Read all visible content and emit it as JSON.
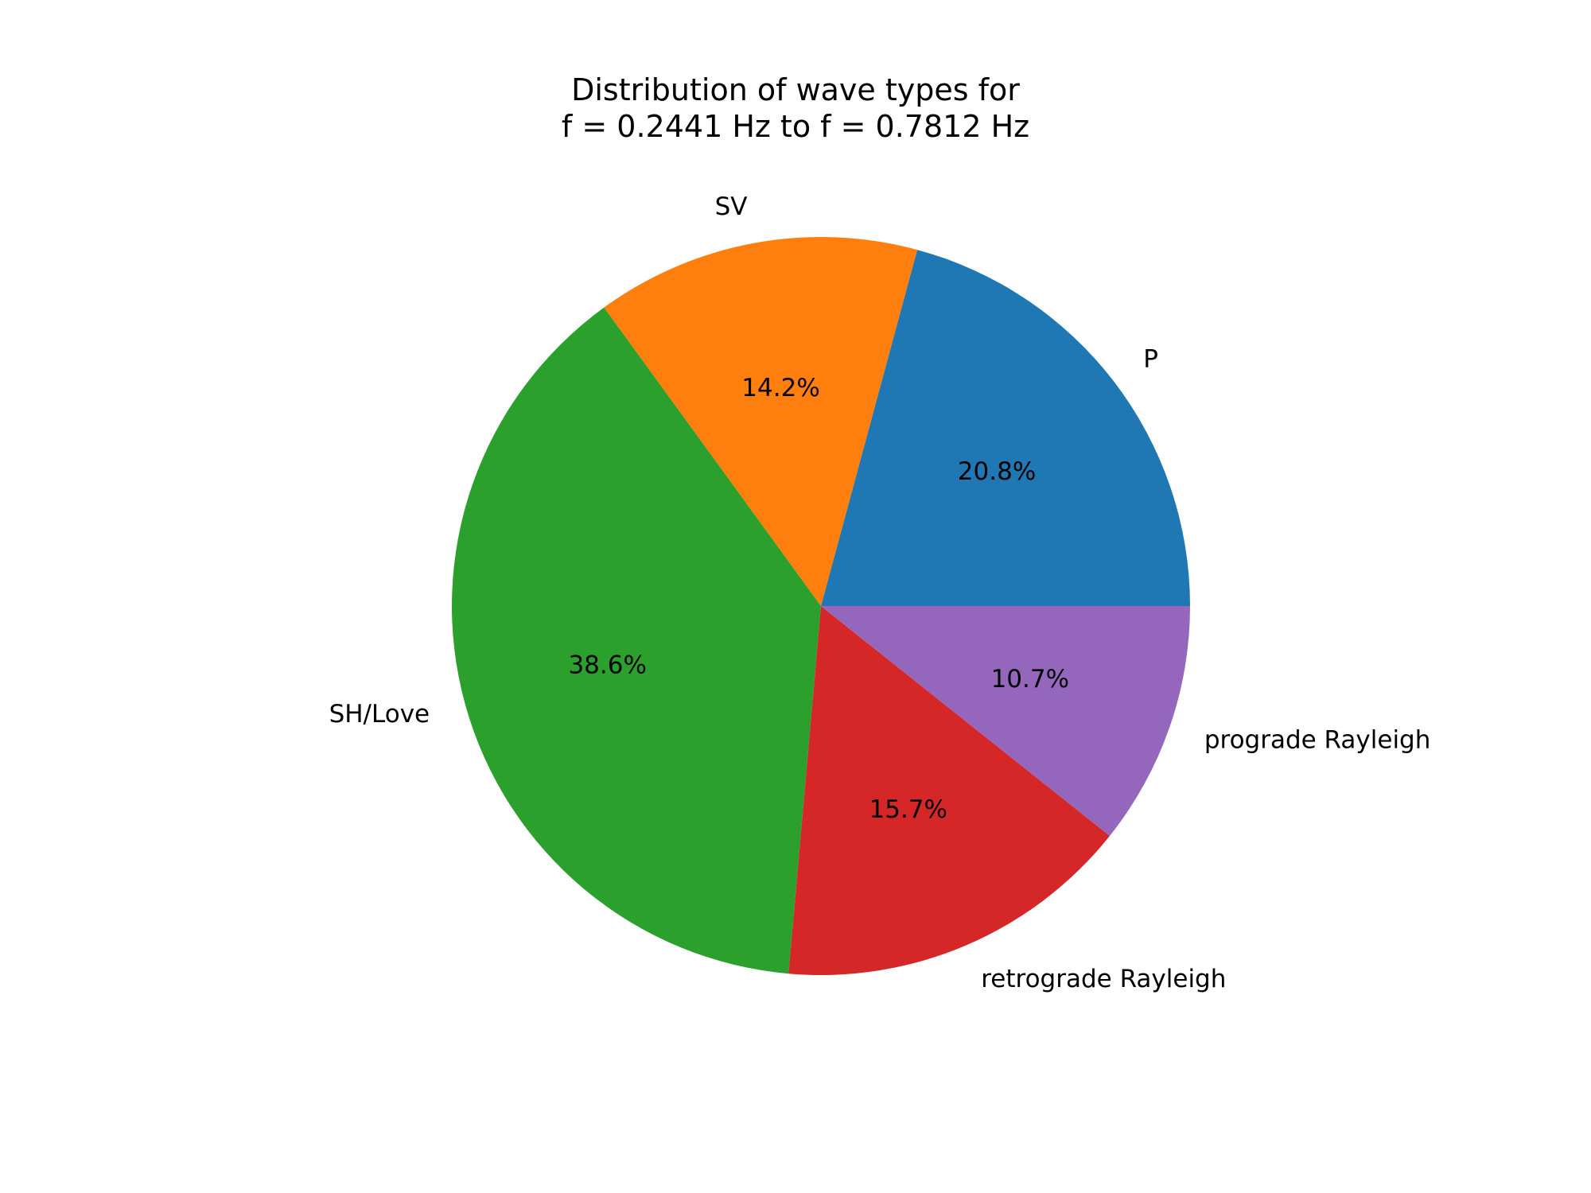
{
  "chart_data": {
    "type": "pie",
    "title_lines": [
      "Distribution of wave types for",
      "f = 0.2441 Hz to f = 0.7812 Hz"
    ],
    "start_angle_deg": 0,
    "direction": "counterclockwise",
    "slices": [
      {
        "label": "P",
        "value": 20.8,
        "pct_label": "20.8%",
        "color": "#1f77b4"
      },
      {
        "label": "SV",
        "value": 14.2,
        "pct_label": "14.2%",
        "color": "#ff7f0e"
      },
      {
        "label": "SH/Love",
        "value": 38.6,
        "pct_label": "38.6%",
        "color": "#2ca02c"
      },
      {
        "label": "retrograde Rayleigh",
        "value": 15.7,
        "pct_label": "15.7%",
        "color": "#d62728"
      },
      {
        "label": "prograde Rayleigh",
        "value": 10.7,
        "pct_label": "10.7%",
        "color": "#9467bd"
      }
    ]
  }
}
